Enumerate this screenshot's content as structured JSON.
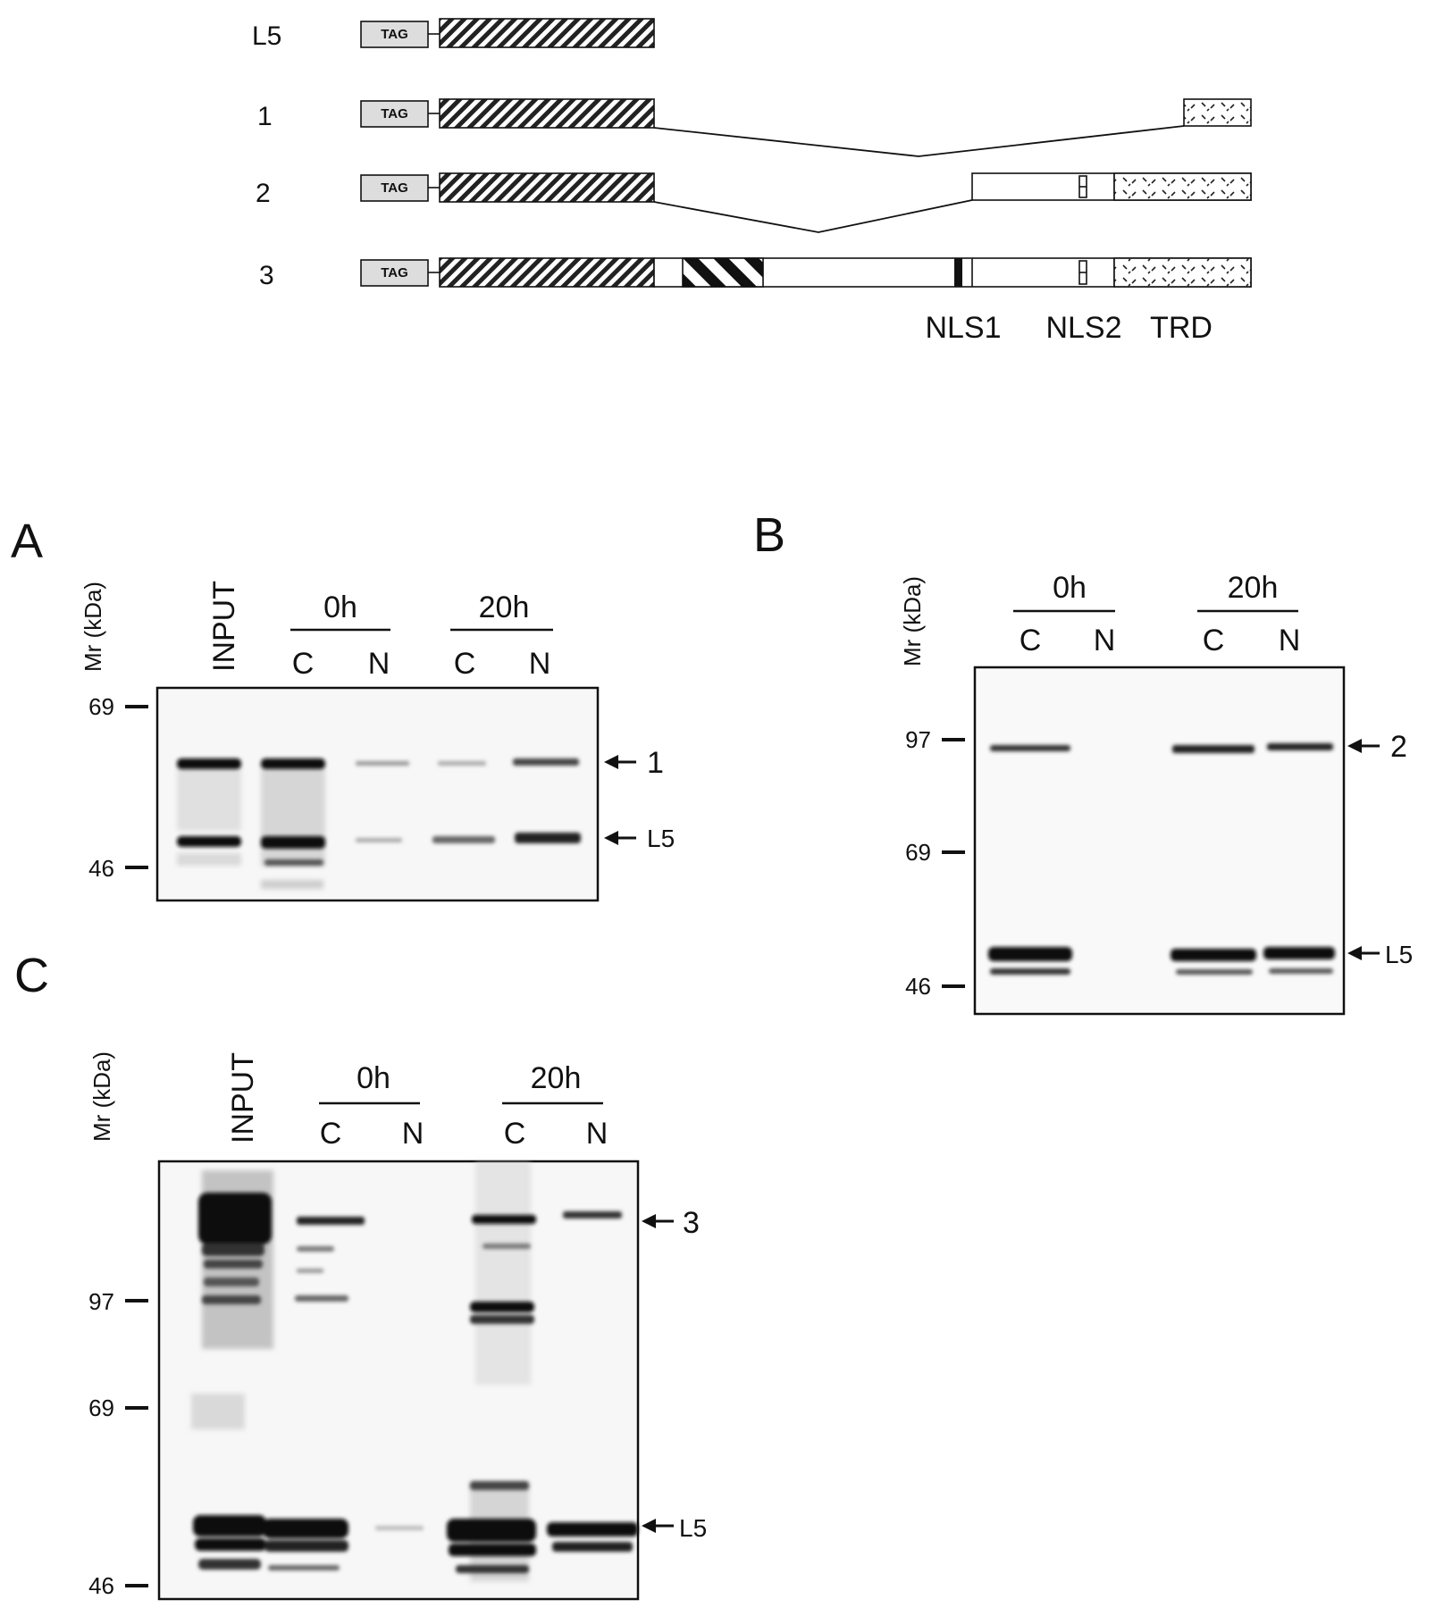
{
  "constructs": {
    "tag_label": "TAG",
    "rows": [
      {
        "name": "L5"
      },
      {
        "name": "1"
      },
      {
        "name": "2"
      },
      {
        "name": "3"
      }
    ],
    "domain_labels": [
      "NLS1",
      "NLS2",
      "TRD"
    ]
  },
  "panels": {
    "A": {
      "letter": "A",
      "axis_label": "Mr (kDa)",
      "input_label": "INPUT",
      "groups": [
        {
          "label": "0h"
        },
        {
          "label": "20h"
        }
      ],
      "lane_labels": [
        "C",
        "N",
        "C",
        "N"
      ],
      "markers": [
        {
          "value": "69"
        },
        {
          "value": "46"
        }
      ],
      "arrows": [
        {
          "label": "1"
        },
        {
          "label": "L5"
        }
      ]
    },
    "B": {
      "letter": "B",
      "axis_label": "Mr (kDa)",
      "groups": [
        {
          "label": "0h"
        },
        {
          "label": "20h"
        }
      ],
      "lane_labels": [
        "C",
        "N",
        "C",
        "N"
      ],
      "markers": [
        {
          "value": "97"
        },
        {
          "value": "69"
        },
        {
          "value": "46"
        }
      ],
      "arrows": [
        {
          "label": "2"
        },
        {
          "label": "L5"
        }
      ]
    },
    "C": {
      "letter": "C",
      "axis_label": "Mr (kDa)",
      "input_label": "INPUT",
      "groups": [
        {
          "label": "0h"
        },
        {
          "label": "20h"
        }
      ],
      "lane_labels": [
        "C",
        "N",
        "C",
        "N"
      ],
      "markers": [
        {
          "value": "97"
        },
        {
          "value": "69"
        },
        {
          "value": "46"
        }
      ],
      "arrows": [
        {
          "label": "3"
        },
        {
          "label": "L5"
        }
      ]
    }
  }
}
